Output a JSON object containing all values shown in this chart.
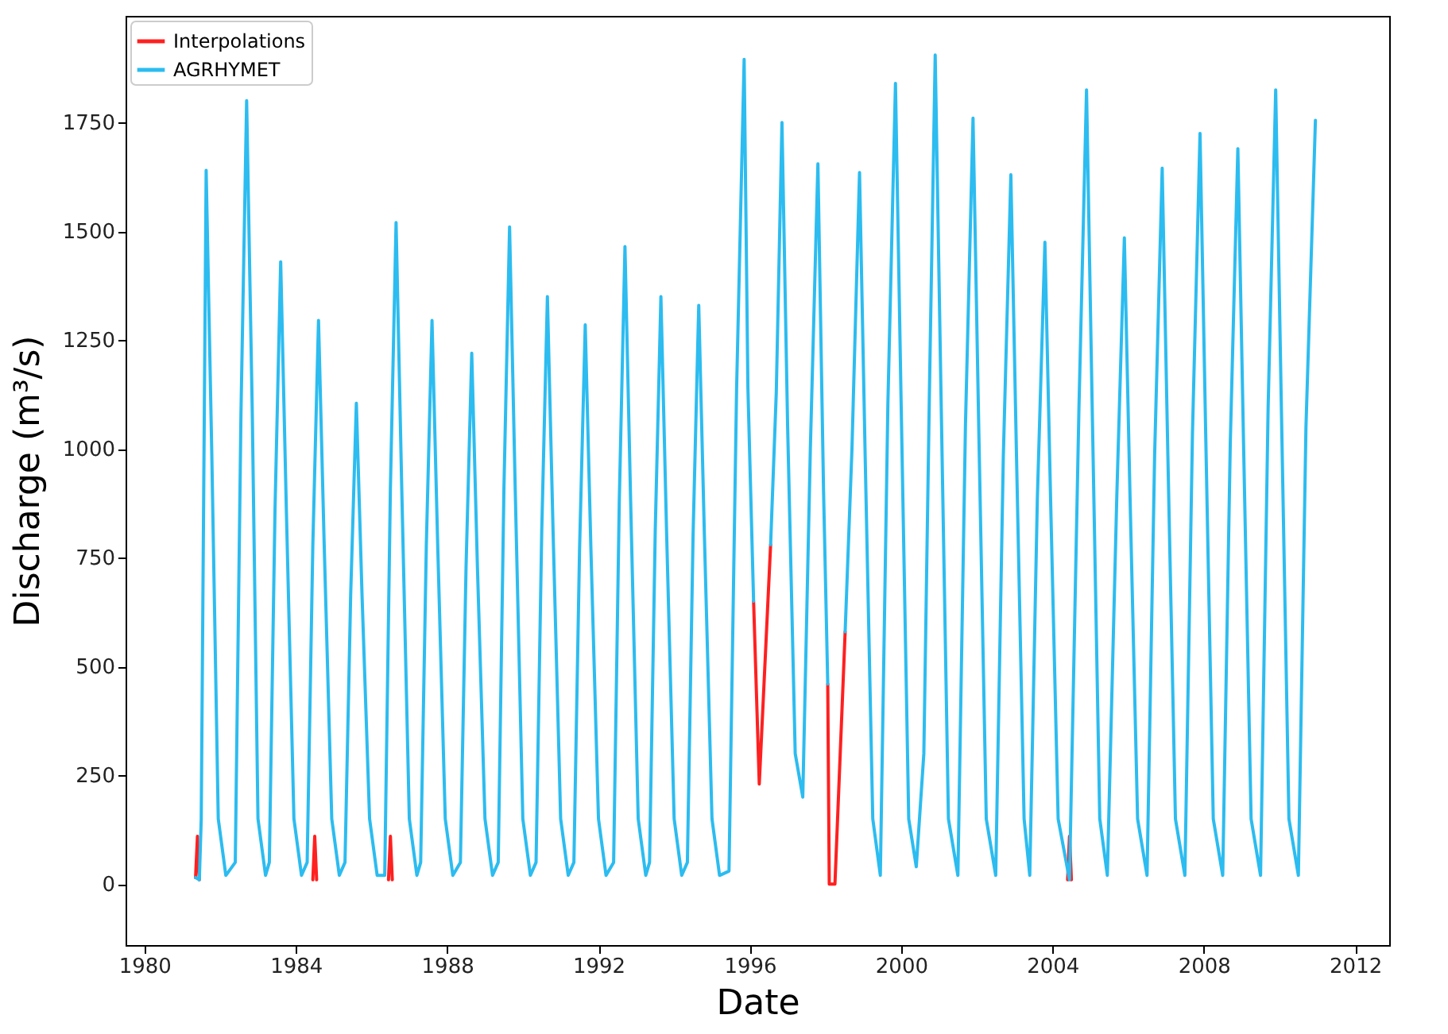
{
  "chart_data": {
    "type": "line",
    "xlabel": "Date",
    "ylabel": "Discharge (m³/s)",
    "xlim": [
      1979.5,
      2012.9
    ],
    "xticks": [
      1980,
      1984,
      1988,
      1992,
      1996,
      2000,
      2004,
      2008,
      2012
    ],
    "ylim": [
      -140,
      1995
    ],
    "yticks": [
      0,
      250,
      500,
      750,
      1000,
      1250,
      1500,
      1750
    ],
    "grid": false,
    "legend": "top left",
    "line_style": "solid",
    "marker": "none",
    "series": [
      {
        "name": "Interpolations",
        "color": "#ff2020",
        "x": [
          1981.35,
          1981.4,
          1981.45,
          1983,
          1984.45,
          1984.5,
          1984.55,
          1985,
          1986.45,
          1986.5,
          1986.55,
          1990,
          1996.1,
          1996.25,
          1996.55,
          1997,
          1998.06,
          1998.1,
          1998.25,
          1998.52,
          2000,
          2004.4,
          2004.45,
          2004.5
        ],
        "values": [
          15,
          110,
          10,
          null,
          10,
          110,
          10,
          null,
          10,
          110,
          10,
          null,
          650,
          230,
          780,
          null,
          460,
          0,
          0,
          580,
          null,
          10,
          110,
          10
        ]
      },
      {
        "name": "AGRHYMET",
        "color": "#2cbcf0",
        "x": [
          1981.35,
          1981.45,
          1981.5,
          1981.63,
          1981.78,
          1981.95,
          1982.15,
          1982.4,
          1982.55,
          1982.7,
          1982.85,
          1983.0,
          1983.2,
          1983.3,
          1983.45,
          1983.6,
          1983.75,
          1983.95,
          1984.15,
          1984.3,
          1984.45,
          1984.6,
          1984.75,
          1984.95,
          1985.15,
          1985.3,
          1985.45,
          1985.6,
          1985.75,
          1985.95,
          1986.15,
          1986.35,
          1986.5,
          1986.65,
          1986.8,
          1987.0,
          1987.2,
          1987.3,
          1987.45,
          1987.6,
          1987.75,
          1987.95,
          1988.15,
          1988.35,
          1988.5,
          1988.65,
          1988.8,
          1989.0,
          1989.2,
          1989.35,
          1989.5,
          1989.65,
          1989.8,
          1990.0,
          1990.2,
          1990.35,
          1990.5,
          1990.65,
          1990.8,
          1991.0,
          1991.2,
          1991.35,
          1991.5,
          1991.65,
          1991.8,
          1992.0,
          1992.2,
          1992.4,
          1992.55,
          1992.7,
          1992.85,
          1993.05,
          1993.25,
          1993.35,
          1993.5,
          1993.65,
          1993.8,
          1994.0,
          1994.2,
          1994.35,
          1994.5,
          1994.65,
          1994.8,
          1995.0,
          1995.2,
          1995.45,
          1995.65,
          1995.85,
          1995.95,
          1996.1,
          1996.3,
          1996.55,
          1996.7,
          1996.85,
          1997.0,
          1997.2,
          1997.4,
          1997.6,
          1997.8,
          1997.95,
          1998.06,
          1998.3,
          1998.52,
          1998.7,
          1998.9,
          1999.05,
          1999.25,
          1999.45,
          1999.65,
          1999.85,
          2000.0,
          2000.2,
          2000.4,
          2000.6,
          2000.75,
          2000.9,
          2001.05,
          2001.25,
          2001.5,
          2001.7,
          2001.9,
          2002.05,
          2002.25,
          2002.5,
          2002.7,
          2002.9,
          2003.05,
          2003.25,
          2003.4,
          2003.6,
          2003.8,
          2003.95,
          2004.15,
          2004.45,
          2004.7,
          2004.9,
          2005.05,
          2005.25,
          2005.45,
          2005.7,
          2005.9,
          2006.05,
          2006.25,
          2006.5,
          2006.7,
          2006.9,
          2007.05,
          2007.25,
          2007.5,
          2007.7,
          2007.9,
          2008.05,
          2008.25,
          2008.5,
          2008.7,
          2008.9,
          2009.05,
          2009.25,
          2009.5,
          2009.7,
          2009.9,
          2010.05,
          2010.25,
          2010.5,
          2010.7,
          2010.95
        ],
        "values": [
          15,
          10,
          150,
          1640,
          985,
          150,
          20,
          50,
          1080,
          1800,
          1080,
          150,
          20,
          50,
          860,
          1430,
          860,
          150,
          20,
          50,
          780,
          1295,
          780,
          150,
          20,
          50,
          665,
          1105,
          665,
          150,
          20,
          20,
          910,
          1520,
          910,
          150,
          20,
          50,
          780,
          1295,
          780,
          150,
          20,
          50,
          730,
          1220,
          730,
          150,
          20,
          50,
          905,
          1510,
          905,
          150,
          20,
          50,
          810,
          1350,
          810,
          150,
          20,
          50,
          770,
          1285,
          770,
          150,
          20,
          50,
          880,
          1465,
          880,
          150,
          20,
          50,
          810,
          1350,
          810,
          150,
          20,
          50,
          800,
          1330,
          800,
          150,
          20,
          30,
          1135,
          1895,
          1140,
          650,
          null,
          780,
          1130,
          1750,
          1050,
          300,
          200,
          1000,
          1655,
          900,
          460,
          null,
          580,
          1000,
          1635,
          980,
          150,
          20,
          1105,
          1840,
          1105,
          150,
          40,
          300,
          1145,
          1905,
          1145,
          150,
          20,
          1055,
          1760,
          1055,
          150,
          20,
          980,
          1630,
          980,
          150,
          20,
          885,
          1475,
          885,
          150,
          10,
          1095,
          1825,
          1095,
          150,
          20,
          890,
          1485,
          890,
          150,
          20,
          985,
          1645,
          985,
          150,
          20,
          1035,
          1725,
          1035,
          150,
          20,
          1015,
          1690,
          1015,
          150,
          20,
          1095,
          1825,
          1095,
          150,
          20,
          1050,
          1755
        ]
      }
    ]
  }
}
